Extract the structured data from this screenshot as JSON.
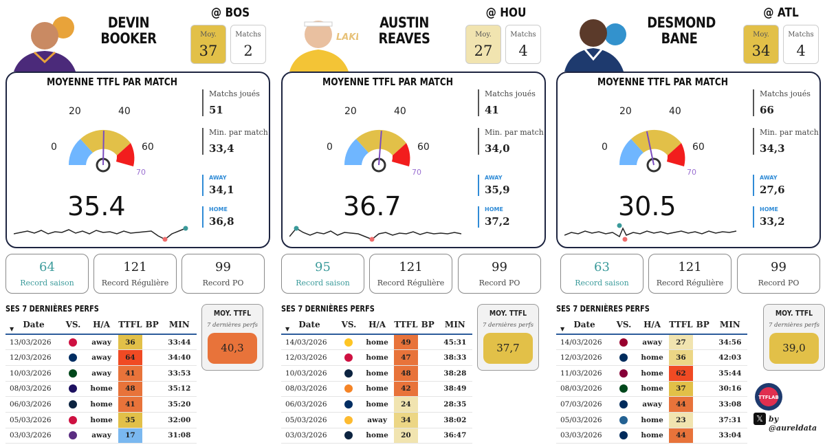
{
  "panels": [
    {
      "first_name": "DEVIN",
      "last_name": "BOOKER",
      "opponent": "@ BOS",
      "header_moy_label": "Moy.",
      "header_moy_value": "37",
      "header_matchs_label": "Matchs",
      "header_matchs_value": "2",
      "header_moy_color": "#e2c048",
      "title": "MOYENNE TTFL PAR MATCH",
      "gauge_ticks": [
        "0",
        "20",
        "40",
        "60",
        "70"
      ],
      "gauge_value": 35.4,
      "average": "35.4",
      "matchs_joues_label": "Matchs joués",
      "matchs_joues": "51",
      "min_label": "Min. par match",
      "min_par_match": "33,4",
      "away_label": "AWAY",
      "away": "34,1",
      "home_label": "HOME",
      "home": "36,8",
      "records": [
        {
          "value": "64",
          "label": "Record saison"
        },
        {
          "value": "121",
          "label": "Record Régulière"
        },
        {
          "value": "99",
          "label": "Record PO"
        }
      ],
      "perfs_title": "SES 7 DERNIÈRES PERFS",
      "columns": [
        "Date",
        "VS.",
        "H/A",
        "TTFL",
        "BP",
        "MIN"
      ],
      "rows": [
        {
          "date": "13/03/2026",
          "logo": "raptors-logo",
          "logo_color": "#ce1141",
          "ha": "away",
          "ttfl": "36",
          "color": "#e2c048",
          "bp": "",
          "min": "33:44"
        },
        {
          "date": "12/03/2026",
          "logo": "pacers-logo",
          "logo_color": "#002d62",
          "ha": "away",
          "ttfl": "64",
          "color": "#f04a23",
          "bp": "",
          "min": "34:40"
        },
        {
          "date": "10/03/2026",
          "logo": "bucks-logo",
          "logo_color": "#00471b",
          "ha": "away",
          "ttfl": "41",
          "color": "#e8733a",
          "bp": "",
          "min": "33:53"
        },
        {
          "date": "08/03/2026",
          "logo": "hornets-logo",
          "logo_color": "#1d1160",
          "ha": "home",
          "ttfl": "48",
          "color": "#e8733a",
          "bp": "",
          "min": "35:12"
        },
        {
          "date": "06/03/2026",
          "logo": "pelicans-logo",
          "logo_color": "#0c2340",
          "ha": "home",
          "ttfl": "41",
          "color": "#e8733a",
          "bp": "",
          "min": "35:20"
        },
        {
          "date": "05/03/2026",
          "logo": "bulls-logo",
          "logo_color": "#ce1141",
          "ha": "home",
          "ttfl": "35",
          "color": "#e2c048",
          "bp": "",
          "min": "32:00"
        },
        {
          "date": "03/03/2026",
          "logo": "kings-logo",
          "logo_color": "#5a2d81",
          "ha": "away",
          "ttfl": "17",
          "color": "#7ab8f0",
          "bp": "",
          "min": "31:08"
        }
      ],
      "moy_title": "MOY. TTFL",
      "moy_sub": "7 dernières perfs",
      "moy_value": "40,3",
      "moy_color": "#e8733a"
    },
    {
      "first_name": "AUSTIN",
      "last_name": "REAVES",
      "opponent": "@ HOU",
      "header_moy_label": "Moy.",
      "header_moy_value": "27",
      "header_matchs_label": "Matchs",
      "header_matchs_value": "4",
      "header_moy_color": "#f1e4b0",
      "title": "MOYENNE TTFL PAR MATCH",
      "gauge_ticks": [
        "0",
        "20",
        "40",
        "60",
        "70"
      ],
      "gauge_value": 36.7,
      "average": "36.7",
      "matchs_joues_label": "Matchs joués",
      "matchs_joues": "41",
      "min_label": "Min. par match",
      "min_par_match": "34,0",
      "away_label": "AWAY",
      "away": "35,9",
      "home_label": "HOME",
      "home": "37,2",
      "records": [
        {
          "value": "95",
          "label": "Record saison"
        },
        {
          "value": "121",
          "label": "Record Régulière"
        },
        {
          "value": "99",
          "label": "Record PO"
        }
      ],
      "perfs_title": "SES 7 DERNIÈRES PERFS",
      "columns": [
        "Date",
        "VS.",
        "H/A",
        "TTFL",
        "BP",
        "MIN"
      ],
      "rows": [
        {
          "date": "14/03/2026",
          "logo": "nuggets-logo",
          "logo_color": "#fec524",
          "ha": "home",
          "ttfl": "49",
          "color": "#e8733a",
          "bp": "",
          "min": "45:31"
        },
        {
          "date": "12/03/2026",
          "logo": "bulls-logo",
          "logo_color": "#ce1141",
          "ha": "home",
          "ttfl": "47",
          "color": "#e8733a",
          "bp": "",
          "min": "38:33"
        },
        {
          "date": "10/03/2026",
          "logo": "timberwolves-logo",
          "logo_color": "#0c2340",
          "ha": "home",
          "ttfl": "48",
          "color": "#e8733a",
          "bp": "",
          "min": "38:28"
        },
        {
          "date": "08/03/2026",
          "logo": "knicks-logo",
          "logo_color": "#f58426",
          "ha": "home",
          "ttfl": "42",
          "color": "#e8733a",
          "bp": "",
          "min": "38:49"
        },
        {
          "date": "06/03/2026",
          "logo": "pacers-logo",
          "logo_color": "#002d62",
          "ha": "home",
          "ttfl": "24",
          "color": "#f1e4b0",
          "bp": "",
          "min": "28:35"
        },
        {
          "date": "05/03/2026",
          "logo": "pacers-logo",
          "logo_color": "#fdbb30",
          "ha": "away",
          "ttfl": "34",
          "color": "#ecd685",
          "bp": "",
          "min": "38:02"
        },
        {
          "date": "03/03/2026",
          "logo": "pelicans-logo",
          "logo_color": "#0c2340",
          "ha": "home",
          "ttfl": "20",
          "color": "#f1e4b0",
          "bp": "",
          "min": "36:47"
        }
      ],
      "moy_title": "MOY. TTFL",
      "moy_sub": "7 dernières perfs",
      "moy_value": "37,7",
      "moy_color": "#e2c048"
    },
    {
      "first_name": "DESMOND",
      "last_name": "BANE",
      "opponent": "@ ATL",
      "header_moy_label": "Moy.",
      "header_moy_value": "34",
      "header_matchs_label": "Matchs",
      "header_matchs_value": "4",
      "header_moy_color": "#e2c048",
      "title": "MOYENNE TTFL PAR MATCH",
      "gauge_ticks": [
        "0",
        "20",
        "40",
        "60",
        "70"
      ],
      "gauge_value": 30.5,
      "average": "30.5",
      "matchs_joues_label": "Matchs joués",
      "matchs_joues": "66",
      "min_label": "Min. par match",
      "min_par_match": "34,3",
      "away_label": "AWAY",
      "away": "27,6",
      "home_label": "HOME",
      "home": "33,2",
      "records": [
        {
          "value": "63",
          "label": "Record saison"
        },
        {
          "value": "121",
          "label": "Record Régulière"
        },
        {
          "value": "99",
          "label": "Record PO"
        }
      ],
      "perfs_title": "SES 7 DERNIÈRES PERFS",
      "columns": [
        "Date",
        "VS.",
        "H/A",
        "TTFL",
        "BP",
        "MIN"
      ],
      "rows": [
        {
          "date": "14/03/2026",
          "logo": "heat-logo",
          "logo_color": "#98002e",
          "ha": "away",
          "ttfl": "27",
          "color": "#f1e4b0",
          "bp": "",
          "min": "34:56"
        },
        {
          "date": "12/03/2026",
          "logo": "wizards-logo",
          "logo_color": "#002b5c",
          "ha": "home",
          "ttfl": "36",
          "color": "#ecd685",
          "bp": "",
          "min": "42:03"
        },
        {
          "date": "11/03/2026",
          "logo": "cavaliers-logo",
          "logo_color": "#860038",
          "ha": "home",
          "ttfl": "62",
          "color": "#f04a23",
          "bp": "",
          "min": "35:44"
        },
        {
          "date": "08/03/2026",
          "logo": "bucks-logo",
          "logo_color": "#00471b",
          "ha": "home",
          "ttfl": "37",
          "color": "#e2c048",
          "bp": "",
          "min": "30:16"
        },
        {
          "date": "07/03/2026",
          "logo": "wizards-logo",
          "logo_color": "#002b5c",
          "ha": "away",
          "ttfl": "44",
          "color": "#e8733a",
          "bp": "",
          "min": "33:08"
        },
        {
          "date": "05/03/2026",
          "logo": "timberwolves-logo",
          "logo_color": "#236192",
          "ha": "home",
          "ttfl": "23",
          "color": "#f1e4b0",
          "bp": "",
          "min": "37:31"
        },
        {
          "date": "03/03/2026",
          "logo": "wizards-logo",
          "logo_color": "#002b5c",
          "ha": "home",
          "ttfl": "44",
          "color": "#e8733a",
          "bp": "",
          "min": "33:04"
        }
      ],
      "moy_title": "MOY. TTFL",
      "moy_sub": "7 dernières perfs",
      "moy_value": "39,0",
      "moy_color": "#e2c048"
    }
  ],
  "brand": {
    "logo_text": "TTFLAB",
    "credit": "by @aureldata",
    "x_icon": "x-logo-icon"
  },
  "colors": {
    "gauge_low": "#6fb6ff",
    "gauge_mid": "#e2c048",
    "gauge_high": "#f21d1d",
    "frame": "#1d2440",
    "season": "#3a9a9a"
  }
}
